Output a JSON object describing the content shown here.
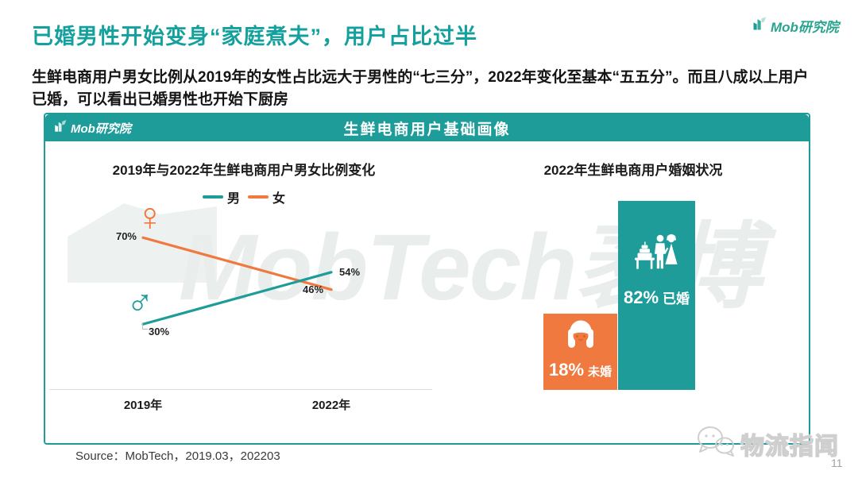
{
  "header": {
    "title": "已婚男性开始变身“家庭煮夫”，用户占比过半",
    "subtitle": "生鲜电商用户男女比例从2019年的女性占比远大于男性的“七三分”，2022年变化至基本“五五分”。而且八成以上用户已婚，可以看出已婚男性也开始下厨房",
    "logo_text": "Mob研究院"
  },
  "panel": {
    "banner_title": "生鲜电商用户基础画像",
    "banner_logo_text": "Mob研究院",
    "watermark_text": "MobTech袤博"
  },
  "footer": {
    "source": "Source：MobTech，2019.03，202203",
    "page_number": "11",
    "watermark_text": "物流指闻"
  },
  "colors": {
    "teal": "#1d9c99",
    "orange": "#f0793f",
    "title_teal": "#14a09d"
  },
  "chart_data": [
    {
      "type": "line",
      "title": "2019年与2022年生鲜电商用户男女比例变化",
      "categories": [
        "2019年",
        "2022年"
      ],
      "series": [
        {
          "name": "男",
          "color": "#1d9c99",
          "values": [
            30,
            54
          ],
          "labels": [
            "30%",
            "54%"
          ],
          "symbol": "♂"
        },
        {
          "name": "女",
          "color": "#f0793f",
          "values": [
            70,
            46
          ],
          "labels": [
            "70%",
            "46%"
          ],
          "symbol": "♀"
        }
      ],
      "ylim": [
        0,
        100
      ],
      "grid": false,
      "legend_position": "top-center"
    },
    {
      "type": "bar",
      "title": "2022年生鲜电商用户婚姻状况",
      "categories": [
        "未婚",
        "已婚"
      ],
      "values": [
        18,
        82
      ],
      "colors": [
        "#f0793f",
        "#1d9c99"
      ],
      "bars": [
        {
          "pct": "18%",
          "label": "未婚",
          "icon": "girl-icon"
        },
        {
          "pct": "82%",
          "label": "已婚",
          "icon": "wedding-couple-icon"
        }
      ]
    }
  ]
}
